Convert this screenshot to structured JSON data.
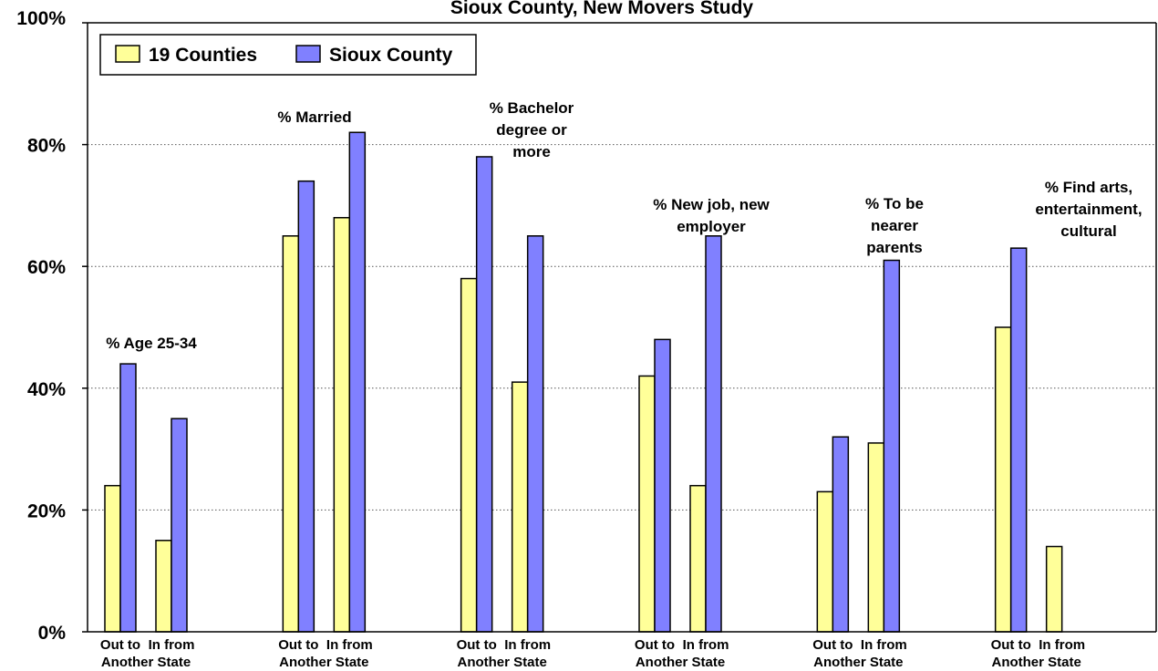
{
  "chart_data": {
    "type": "bar",
    "title": "Sioux County, New Movers Study",
    "xlabel": "",
    "ylabel": "",
    "ylim": [
      0,
      100
    ],
    "yticks": [
      "0%",
      "20%",
      "40%",
      "60%",
      "80%",
      "100%"
    ],
    "grid": "horizontal-dotted",
    "legend_position": "top-left",
    "legend": [
      "19 Counties",
      "Sioux County"
    ],
    "colors": {
      "19 Counties": "#ffff99",
      "Sioux County": "#8080ff"
    },
    "category_labels": [
      "Out to Another State",
      "In from Another State"
    ],
    "category_label_lines": [
      [
        "Out to",
        "Another State"
      ],
      [
        "In from",
        "Another State"
      ]
    ],
    "groups": [
      {
        "label": "% Age 25-34",
        "label_lines": [
          "% Age 25-34"
        ],
        "values": {
          "19 Counties": [
            24,
            15
          ],
          "Sioux County": [
            44,
            35
          ]
        }
      },
      {
        "label": "% Married",
        "label_lines": [
          "% Married"
        ],
        "values": {
          "19 Counties": [
            65,
            68
          ],
          "Sioux County": [
            74,
            82
          ]
        }
      },
      {
        "label": "% Bachelor degree or more",
        "label_lines": [
          "% Bachelor",
          "degree or",
          "more"
        ],
        "values": {
          "19 Counties": [
            58,
            41
          ],
          "Sioux County": [
            78,
            65
          ]
        }
      },
      {
        "label": "% New job, new employer",
        "label_lines": [
          "% New job, new",
          "employer"
        ],
        "values": {
          "19 Counties": [
            42,
            24
          ],
          "Sioux County": [
            48,
            65
          ]
        }
      },
      {
        "label": "% To be nearer parents",
        "label_lines": [
          "% To be",
          "nearer",
          "parents"
        ],
        "values": {
          "19 Counties": [
            23,
            31
          ],
          "Sioux County": [
            32,
            61
          ]
        }
      },
      {
        "label": "% Find arts, entertainment, cultural",
        "label_lines": [
          "% Find arts,",
          "entertainment,",
          "cultural"
        ],
        "values": {
          "19 Counties": [
            50,
            14
          ],
          "Sioux County": [
            63,
            null
          ]
        }
      }
    ]
  }
}
